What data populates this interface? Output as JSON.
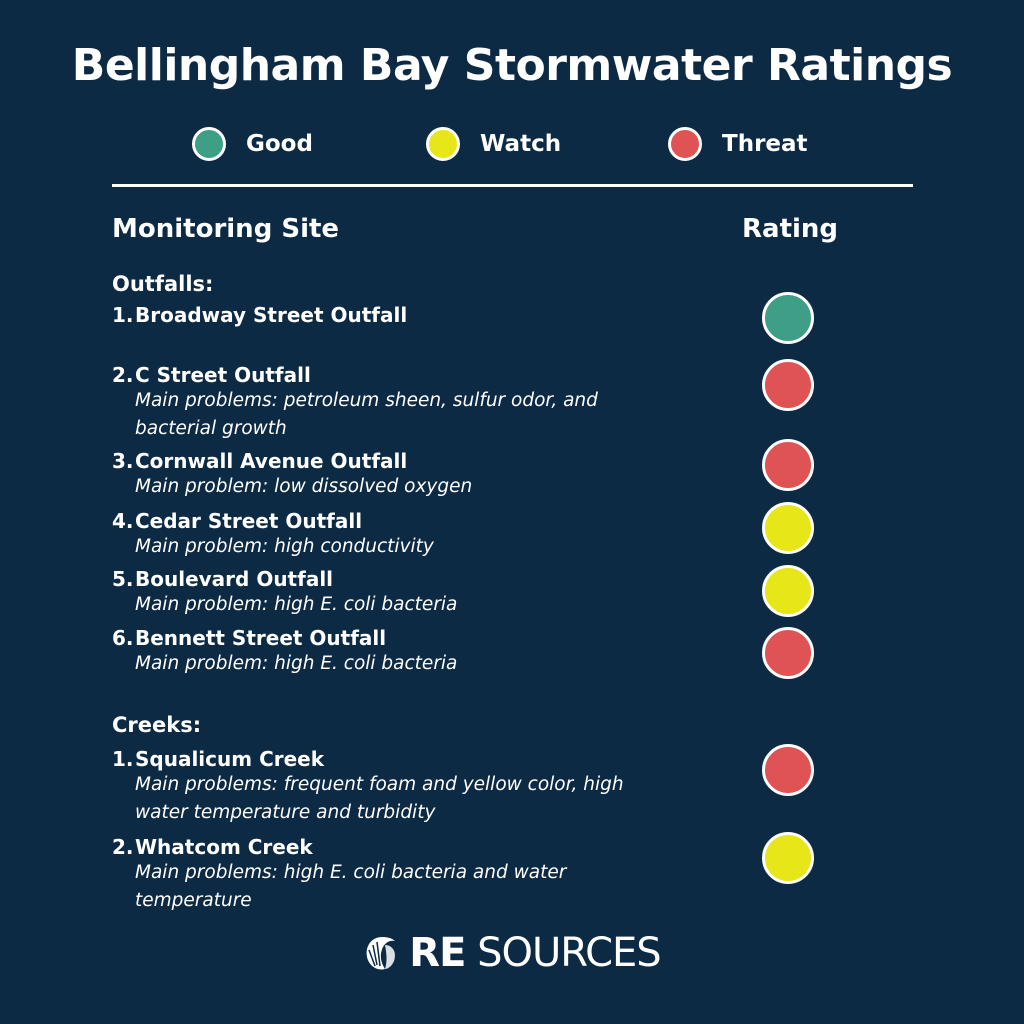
{
  "title": "Bellingham Bay Stormwater Ratings",
  "colors": {
    "good": "#3f9e86",
    "watch": "#e6e619",
    "threat": "#e05355",
    "background": "#0d2a45"
  },
  "legend": [
    {
      "label": "Good",
      "status": "good"
    },
    {
      "label": "Watch",
      "status": "watch"
    },
    {
      "label": "Threat",
      "status": "threat"
    }
  ],
  "columns": {
    "site": "Monitoring Site",
    "rating": "Rating"
  },
  "outfalls": {
    "heading": "Outfalls:",
    "items": [
      {
        "num": "1.",
        "name": "Broadway Street Outfall",
        "problem": "",
        "rating": "good"
      },
      {
        "num": "2.",
        "name": "C Street Outfall",
        "problem": "Main problems: petroleum sheen, sulfur odor, and bacterial growth",
        "rating": "threat"
      },
      {
        "num": "3.",
        "name": "Cornwall Avenue Outfall",
        "problem": "Main problem: low dissolved oxygen",
        "rating": "threat"
      },
      {
        "num": "4.",
        "name": "Cedar Street Outfall",
        "problem": "Main problem: high conductivity",
        "rating": "watch"
      },
      {
        "num": "5.",
        "name": "Boulevard Outfall",
        "problem": "Main problem: high E. coli bacteria",
        "rating": "watch"
      },
      {
        "num": "6.",
        "name": "Bennett Street Outfall",
        "problem": "Main problem: high E. coli bacteria",
        "rating": "threat"
      }
    ]
  },
  "creeks": {
    "heading": "Creeks:",
    "items": [
      {
        "num": "1.",
        "name": "Squalicum Creek",
        "problem": "Main problems: frequent foam and yellow color, high water temperature and turbidity",
        "rating": "threat"
      },
      {
        "num": "2.",
        "name": "Whatcom Creek",
        "problem": "Main problems: high E. coli bacteria and water temperature",
        "rating": "watch"
      }
    ]
  },
  "logo": {
    "bold": "RE",
    "rest": " SOURCES",
    "icon": "shell-icon"
  }
}
